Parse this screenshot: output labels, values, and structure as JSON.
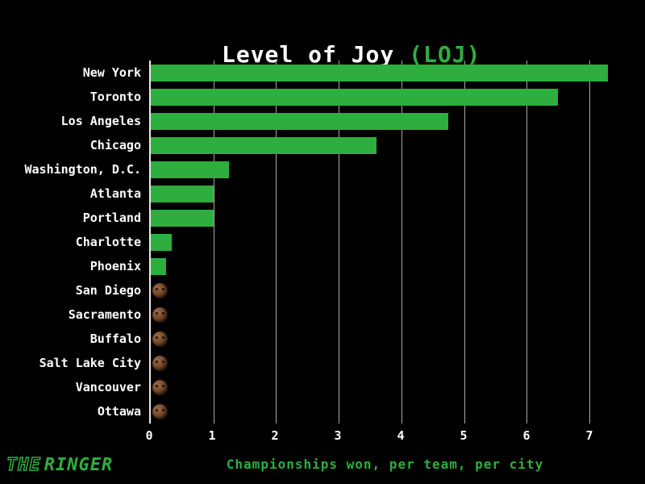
{
  "title": {
    "main": "Level of Joy ",
    "accent": "(LOJ)"
  },
  "footer": {
    "xlabel": "Championships won, per team, per city",
    "logo_the": "THE",
    "logo_ringer": "RINGER"
  },
  "colors": {
    "green": "#2eae3e",
    "background": "#000000",
    "gridline": "#a8a8a8",
    "text": "#ffffff"
  },
  "chart_data": {
    "type": "bar",
    "orientation": "horizontal",
    "title": "Level of Joy (LOJ)",
    "xlabel": "Championships won, per team, per city",
    "categories": [
      "New York",
      "Toronto",
      "Los Angeles",
      "Chicago",
      "Washington, D.C.",
      "Atlanta",
      "Portland",
      "Charlotte",
      "Phoenix",
      "San Diego",
      "Sacramento",
      "Buffalo",
      "Salt Lake City",
      "Vancouver",
      "Ottawa"
    ],
    "values": [
      7.3,
      6.5,
      4.75,
      3.6,
      1.25,
      1.0,
      1.0,
      0.33,
      0.25,
      0,
      0,
      0,
      0,
      0,
      0
    ],
    "xlim": [
      0,
      7.5
    ],
    "xticks": [
      0,
      1,
      2,
      3,
      4,
      5,
      6,
      7
    ],
    "grid": "vertical",
    "zero_value_marker": "crying-face-icon",
    "legend": "none"
  }
}
